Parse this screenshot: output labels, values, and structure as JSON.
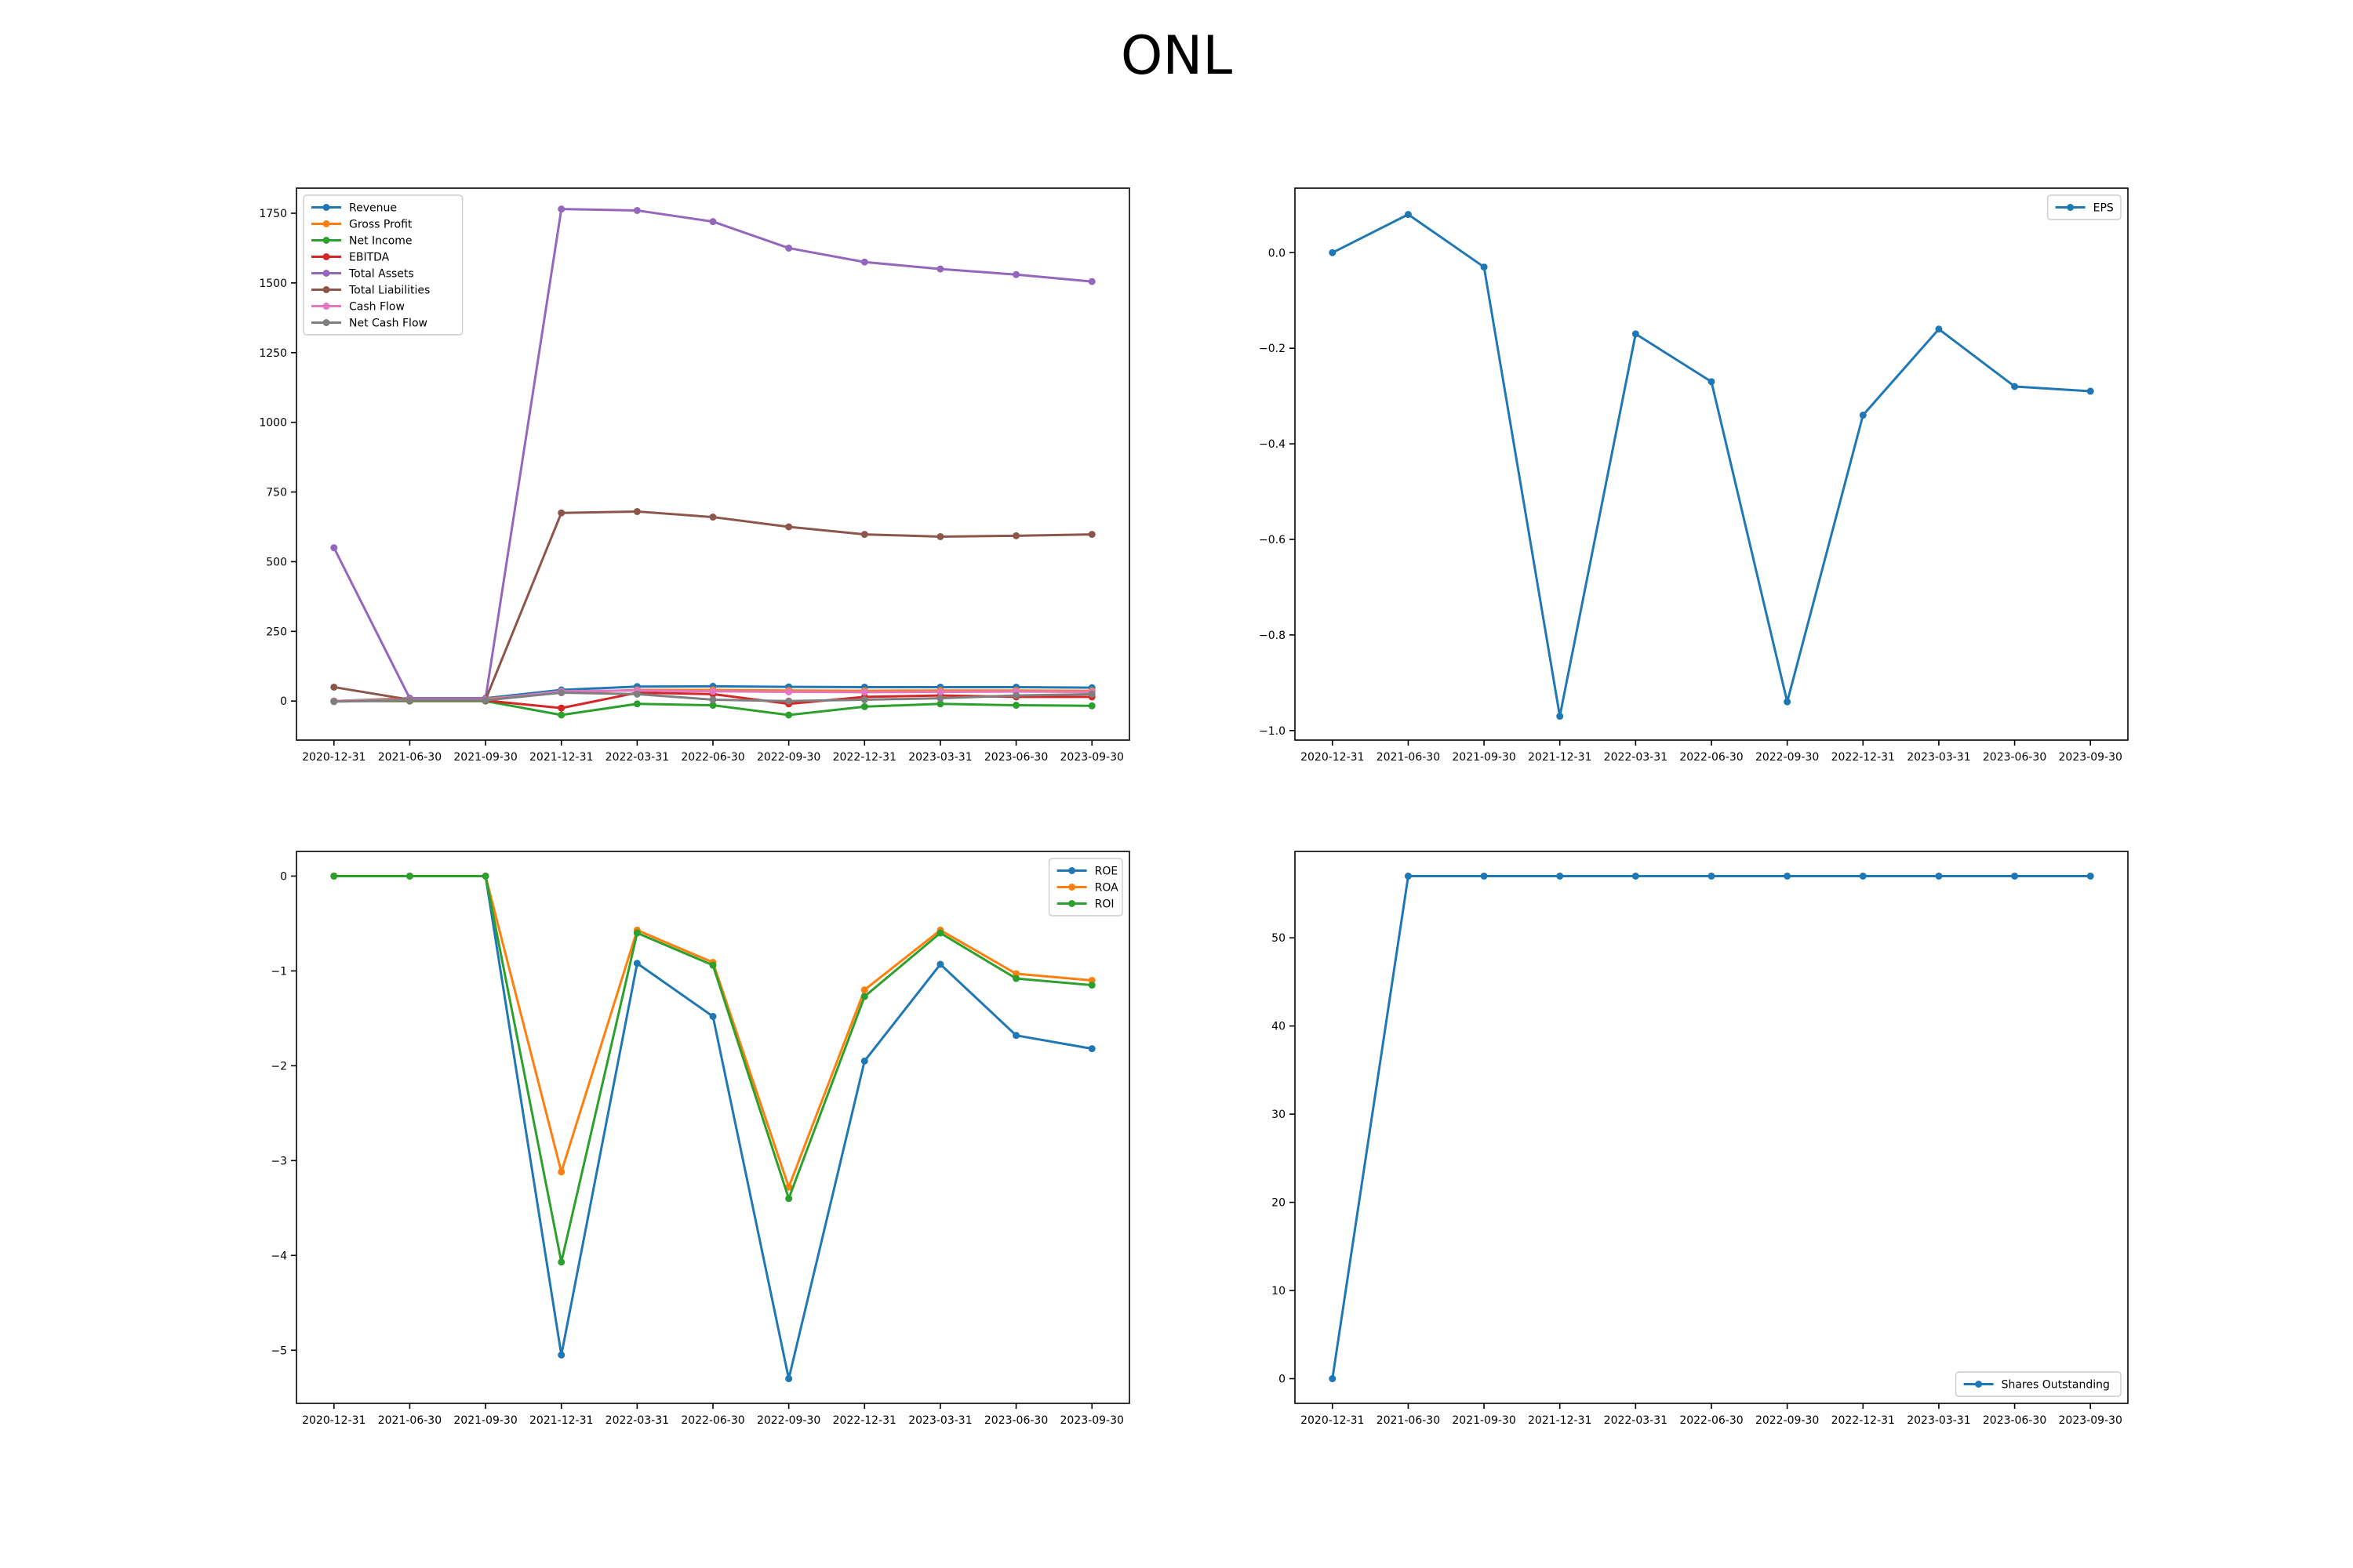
{
  "figure": {
    "title": "ONL"
  },
  "chart_data": [
    {
      "type": "line",
      "title": "",
      "xlabel": "",
      "ylabel": "",
      "x": [
        "2020-12-31",
        "2021-06-30",
        "2021-09-30",
        "2021-12-31",
        "2022-03-31",
        "2022-06-30",
        "2022-09-30",
        "2022-12-31",
        "2023-03-31",
        "2023-06-30",
        "2023-09-30"
      ],
      "ylim": [
        -140,
        1840
      ],
      "yticks": [
        0,
        250,
        500,
        750,
        1000,
        1250,
        1500,
        1750
      ],
      "ytick_labels": [
        "0",
        "250",
        "500",
        "750",
        "1000",
        "1250",
        "1500",
        "1750"
      ],
      "legend": "top-left",
      "grid": false,
      "series": [
        {
          "name": "Revenue",
          "color": "#1f77b4",
          "values": [
            0,
            10,
            10,
            40,
            52,
            53,
            51,
            50,
            50,
            50,
            48
          ]
        },
        {
          "name": "Gross Profit",
          "color": "#ff7f0e",
          "values": [
            0,
            8,
            8,
            30,
            40,
            40,
            38,
            37,
            38,
            38,
            37
          ]
        },
        {
          "name": "Net Income",
          "color": "#2ca02c",
          "values": [
            0,
            0,
            0,
            -50,
            -10,
            -15,
            -50,
            -20,
            -10,
            -15,
            -17
          ]
        },
        {
          "name": "EBITDA",
          "color": "#d62728",
          "values": [
            0,
            2,
            2,
            -25,
            30,
            25,
            -10,
            15,
            20,
            15,
            15
          ]
        },
        {
          "name": "Total Assets",
          "color": "#9467bd",
          "values": [
            550,
            10,
            10,
            1765,
            1760,
            1720,
            1625,
            1575,
            1550,
            1530,
            1505
          ]
        },
        {
          "name": "Total Liabilities",
          "color": "#8c564b",
          "values": [
            50,
            5,
            5,
            675,
            680,
            660,
            625,
            598,
            590,
            593,
            598
          ]
        },
        {
          "name": "Cash Flow",
          "color": "#e377c2",
          "values": [
            0,
            5,
            5,
            35,
            38,
            35,
            33,
            32,
            33,
            34,
            33
          ]
        },
        {
          "name": "Net Cash Flow",
          "color": "#7f7f7f",
          "values": [
            -2,
            3,
            3,
            30,
            25,
            5,
            0,
            5,
            10,
            20,
            25
          ]
        }
      ]
    },
    {
      "type": "line",
      "title": "",
      "xlabel": "",
      "ylabel": "",
      "x": [
        "2020-12-31",
        "2021-06-30",
        "2021-09-30",
        "2021-12-31",
        "2022-03-31",
        "2022-06-30",
        "2022-09-30",
        "2022-12-31",
        "2023-03-31",
        "2023-06-30",
        "2023-09-30"
      ],
      "ylim": [
        -1.02,
        0.135
      ],
      "yticks": [
        0.0,
        -0.2,
        -0.4,
        -0.6,
        -0.8,
        -1.0
      ],
      "ytick_labels": [
        "0.0",
        "−0.2",
        "−0.4",
        "−0.6",
        "−0.8",
        "−1.0"
      ],
      "legend": "top-right",
      "grid": false,
      "series": [
        {
          "name": "EPS",
          "color": "#1f77b4",
          "values": [
            0.0,
            0.08,
            -0.03,
            -0.97,
            -0.17,
            -0.27,
            -0.94,
            -0.34,
            -0.16,
            -0.28,
            -0.29
          ]
        }
      ]
    },
    {
      "type": "line",
      "title": "",
      "xlabel": "",
      "ylabel": "",
      "x": [
        "2020-12-31",
        "2021-06-30",
        "2021-09-30",
        "2021-12-31",
        "2022-03-31",
        "2022-06-30",
        "2022-09-30",
        "2022-12-31",
        "2023-03-31",
        "2023-06-30",
        "2023-09-30"
      ],
      "ylim": [
        -5.56,
        0.26
      ],
      "yticks": [
        0,
        -1,
        -2,
        -3,
        -4,
        -5
      ],
      "ytick_labels": [
        "0",
        "−1",
        "−2",
        "−3",
        "−4",
        "−5"
      ],
      "legend": "top-right",
      "grid": false,
      "series": [
        {
          "name": "ROE",
          "color": "#1f77b4",
          "values": [
            0,
            0,
            0,
            -5.05,
            -0.92,
            -1.48,
            -5.3,
            -1.95,
            -0.93,
            -1.68,
            -1.82
          ]
        },
        {
          "name": "ROA",
          "color": "#ff7f0e",
          "values": [
            0,
            0,
            0,
            -3.12,
            -0.57,
            -0.91,
            -3.28,
            -1.2,
            -0.57,
            -1.03,
            -1.1
          ]
        },
        {
          "name": "ROI",
          "color": "#2ca02c",
          "values": [
            0,
            0,
            0,
            -4.07,
            -0.6,
            -0.94,
            -3.4,
            -1.27,
            -0.6,
            -1.08,
            -1.15
          ]
        }
      ]
    },
    {
      "type": "line",
      "title": "",
      "xlabel": "",
      "ylabel": "",
      "x": [
        "2020-12-31",
        "2021-06-30",
        "2021-09-30",
        "2021-12-31",
        "2022-03-31",
        "2022-06-30",
        "2022-09-30",
        "2022-12-31",
        "2023-03-31",
        "2023-06-30",
        "2023-09-30"
      ],
      "ylim": [
        -2.8,
        59.8
      ],
      "yticks": [
        0,
        10,
        20,
        30,
        40,
        50
      ],
      "ytick_labels": [
        "0",
        "10",
        "20",
        "30",
        "40",
        "50"
      ],
      "legend": "bottom-right",
      "grid": false,
      "series": [
        {
          "name": "Shares Outstanding",
          "color": "#1f77b4",
          "values": [
            0,
            57,
            57,
            57,
            57,
            57,
            57,
            57,
            57,
            57,
            57
          ]
        }
      ]
    }
  ]
}
